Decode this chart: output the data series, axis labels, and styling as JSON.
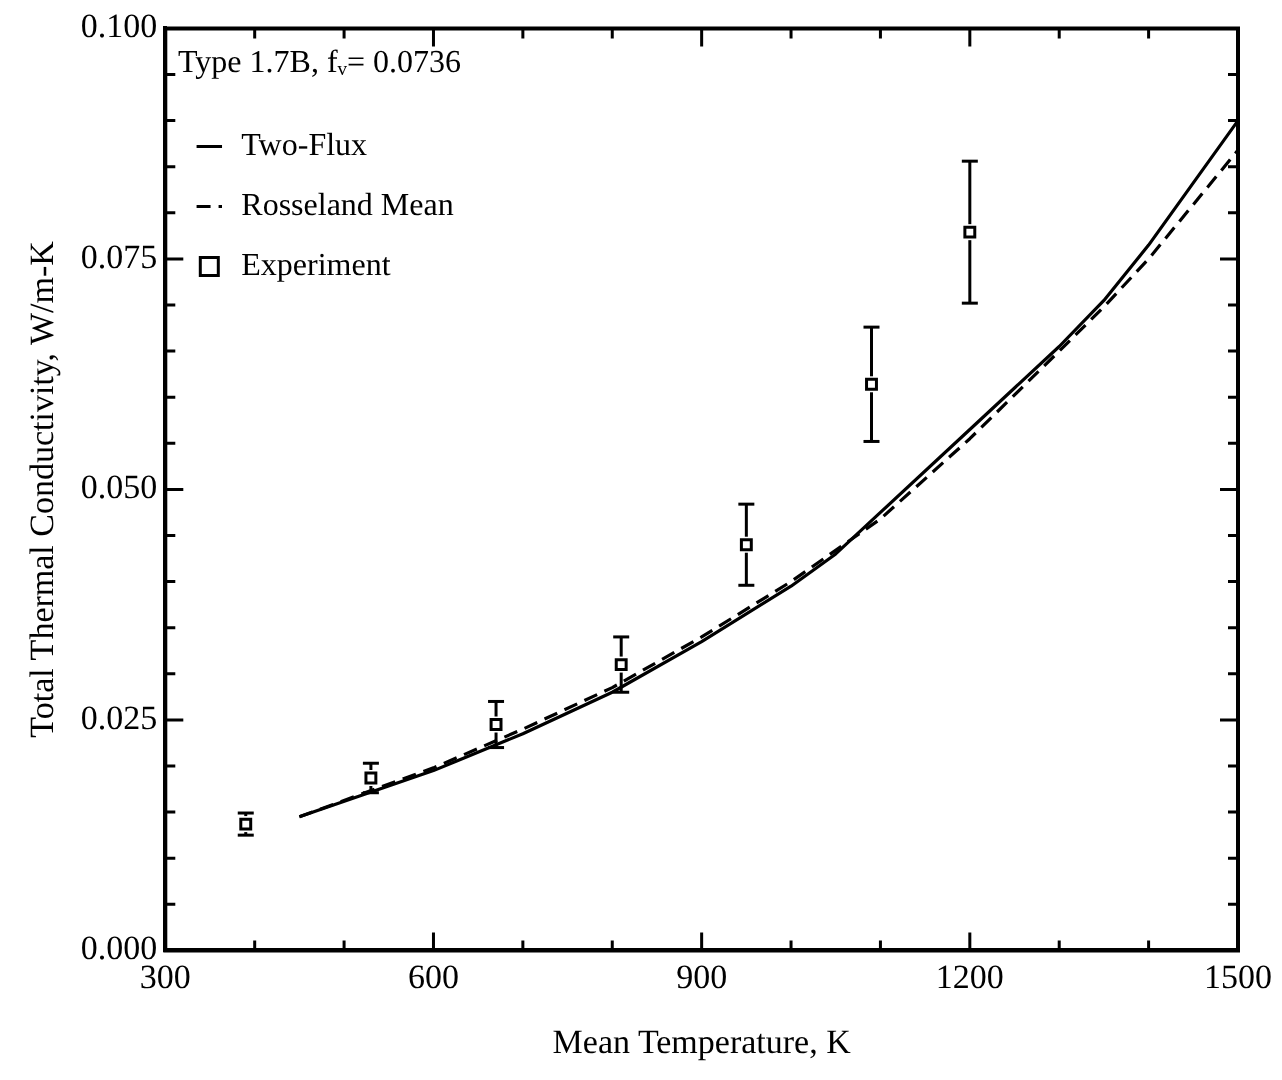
{
  "chart_data": {
    "type": "line",
    "xlabel": "Mean Temperature, K",
    "ylabel": "Total Thermal Conductivity, W/m-K",
    "legend_title": "Type 1.7B, fᵥ= 0.0736",
    "legend": "top left",
    "grid": false,
    "xlim": [
      300,
      1500
    ],
    "xticks": [
      300,
      {
        "value": 400,
        "label": null
      },
      {
        "value": 500,
        "label": null
      },
      600,
      {
        "value": 700,
        "label": null
      },
      {
        "value": 800,
        "label": null
      },
      900,
      {
        "value": 1000,
        "label": null
      },
      {
        "value": 1100,
        "label": null
      },
      1200,
      {
        "value": 1300,
        "label": null
      },
      {
        "value": 1400,
        "label": null
      },
      1500
    ],
    "ylim": [
      0,
      0.1
    ],
    "yticks": [
      {
        "value": 0,
        "label": "0.000"
      },
      {
        "value": 0.005,
        "label": null
      },
      {
        "value": 0.01,
        "label": null
      },
      {
        "value": 0.015,
        "label": null
      },
      {
        "value": 0.02,
        "label": null
      },
      0.025,
      {
        "value": 0.03,
        "label": null
      },
      {
        "value": 0.035,
        "label": null
      },
      {
        "value": 0.04,
        "label": null
      },
      {
        "value": 0.045,
        "label": null
      },
      {
        "value": 0.05,
        "label": "0.050"
      },
      {
        "value": 0.055,
        "label": null
      },
      {
        "value": 0.06,
        "label": null
      },
      {
        "value": 0.065,
        "label": null
      },
      {
        "value": 0.07,
        "label": null
      },
      0.075,
      {
        "value": 0.08,
        "label": null
      },
      {
        "value": 0.085,
        "label": null
      },
      {
        "value": 0.09,
        "label": null
      },
      {
        "value": 0.095,
        "label": null
      },
      {
        "value": 0.1,
        "label": "0.100"
      }
    ],
    "series": [
      {
        "name": "Two-Flux",
        "type": "line",
        "line_style": "solid",
        "marker": "none",
        "color": "#000000",
        "x": [
          450,
          600,
          700,
          800,
          900,
          1000,
          1050,
          1100,
          1200,
          1300,
          1350,
          1400,
          1500
        ],
        "values": [
          0.0145,
          0.0195,
          0.0235,
          0.028,
          0.0335,
          0.0395,
          0.043,
          0.0475,
          0.0565,
          0.0655,
          0.0705,
          0.0765,
          0.09
        ]
      },
      {
        "name": "Rosseland Mean",
        "type": "line",
        "line_style": "dashed",
        "marker": "none",
        "color": "#000000",
        "x": [
          450,
          600,
          700,
          800,
          900,
          1000,
          1100,
          1200,
          1300,
          1350,
          1400,
          1500
        ],
        "values": [
          0.0145,
          0.0198,
          0.024,
          0.0285,
          0.034,
          0.04,
          0.0468,
          0.0555,
          0.065,
          0.0698,
          0.075,
          0.0868
        ]
      },
      {
        "name": "Experiment",
        "type": "scatter",
        "marker": "square",
        "color": "#000000",
        "x": [
          390,
          530,
          670,
          810,
          950,
          1090,
          1200
        ],
        "values": [
          0.0137,
          0.0187,
          0.0245,
          0.031,
          0.044,
          0.0614,
          0.0779
        ],
        "errors": [
          0.0012,
          0.0016,
          0.0025,
          0.003,
          0.0044,
          0.0062,
          0.0077
        ]
      }
    ]
  }
}
